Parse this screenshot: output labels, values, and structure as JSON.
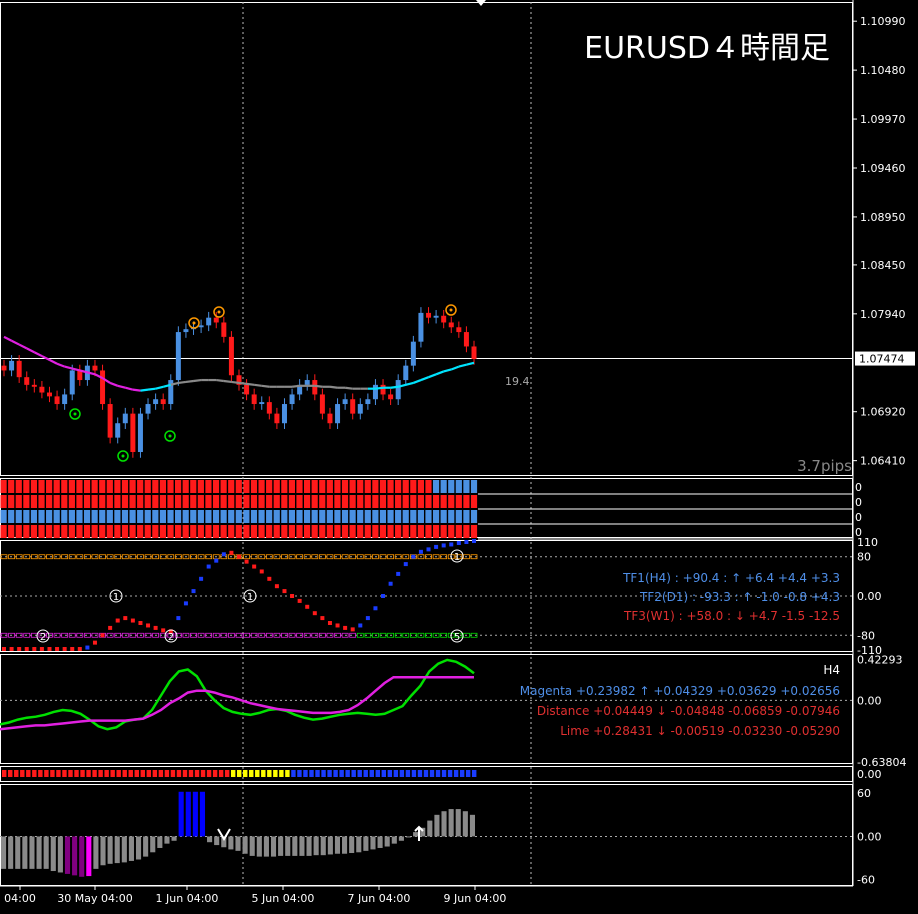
{
  "title": "EURUSD４時間足",
  "chart_data": [
    {
      "type": "candlestick",
      "title": "EURUSD４時間足",
      "price_axis_ticks": [
        "1.10990",
        "1.10480",
        "1.09970",
        "1.09460",
        "1.08950",
        "1.08450",
        "1.07940",
        "1.06920",
        "1.06410"
      ],
      "current_price": "1.07474",
      "ylim": [
        1.0625,
        1.1119
      ],
      "time_axis_ticks": [
        "04:00",
        "30 May 04:00",
        "1 Jun 04:00",
        "5 Jun 04:00",
        "7 Jun 04:00",
        "9 Jun 04:00"
      ],
      "annotations": {
        "range_value": "19.4",
        "spread_label": "3.7pips"
      },
      "candles_close": [
        1.0735,
        1.0745,
        1.0728,
        1.072,
        1.0718,
        1.0712,
        1.0708,
        1.07,
        1.071,
        1.0735,
        1.0725,
        1.074,
        1.0735,
        1.07,
        1.0665,
        1.068,
        1.069,
        1.065,
        1.069,
        1.07,
        1.0705,
        1.07,
        1.0725,
        1.0775,
        1.0778,
        1.078,
        1.0782,
        1.079,
        1.0785,
        1.077,
        1.073,
        1.072,
        1.071,
        1.07,
        1.0702,
        1.069,
        1.068,
        1.07,
        1.071,
        1.072,
        1.0725,
        1.071,
        1.069,
        1.068,
        1.07,
        1.0705,
        1.069,
        1.07,
        1.0705,
        1.072,
        1.071,
        1.0705,
        1.0725,
        1.074,
        1.0765,
        1.0795,
        1.079,
        1.0792,
        1.0785,
        1.078,
        1.0775,
        1.076,
        1.0747
      ],
      "candles_open": [
        1.074,
        1.0735,
        1.0745,
        1.0728,
        1.072,
        1.0718,
        1.0712,
        1.0708,
        1.07,
        1.071,
        1.0735,
        1.0725,
        1.074,
        1.0735,
        1.07,
        1.0665,
        1.068,
        1.069,
        1.065,
        1.069,
        1.07,
        1.0705,
        1.07,
        1.0725,
        1.0775,
        1.0778,
        1.078,
        1.0782,
        1.079,
        1.0785,
        1.077,
        1.073,
        1.072,
        1.071,
        1.07,
        1.0702,
        1.069,
        1.068,
        1.07,
        1.071,
        1.072,
        1.0725,
        1.071,
        1.069,
        1.068,
        1.07,
        1.0705,
        1.069,
        1.07,
        1.0705,
        1.072,
        1.071,
        1.0705,
        1.0725,
        1.074,
        1.0765,
        1.0795,
        1.079,
        1.0792,
        1.0785,
        1.078,
        1.0775,
        1.076
      ],
      "moving_average": [
        1.077,
        1.0766,
        1.0762,
        1.0758,
        1.0754,
        1.075,
        1.0746,
        1.0742,
        1.0739,
        1.0737,
        1.0735,
        1.0733,
        1.0731,
        1.0727,
        1.0722,
        1.0719,
        1.0717,
        1.0715,
        1.0714,
        1.0715,
        1.0716,
        1.0718,
        1.072,
        1.0722,
        1.0723,
        1.0724,
        1.0725,
        1.0725,
        1.0725,
        1.0724,
        1.0723,
        1.0722,
        1.0721,
        1.072,
        1.0719,
        1.0718,
        1.0718,
        1.0718,
        1.0718,
        1.0719,
        1.0719,
        1.0719,
        1.0718,
        1.0718,
        1.0717,
        1.0717,
        1.0716,
        1.0716,
        1.0716,
        1.0716,
        1.0717,
        1.0717,
        1.0718,
        1.072,
        1.0722,
        1.0725,
        1.0728,
        1.0731,
        1.0734,
        1.0736,
        1.0739,
        1.0741,
        1.0743
      ]
    },
    {
      "type": "heatmap",
      "rows": [
        {
          "red_count": 57,
          "blue_count": 6,
          "value_label": "0"
        },
        {
          "red_count": 63,
          "blue_count": 0,
          "value_label": "0"
        },
        {
          "red_count": 0,
          "blue_count": 63,
          "value_label": "0"
        },
        {
          "red_count": 63,
          "blue_count": 0,
          "value_label": "0"
        }
      ]
    },
    {
      "type": "scatter",
      "y_ticks": [
        "110",
        "80",
        "0.00",
        "-80",
        "-110"
      ],
      "ylim": [
        -110,
        110
      ],
      "info_lines": [
        {
          "text": "TF1(H4) : +90.4 : ↑ +6.4 +4.4 +3.3",
          "color": "#4f8fe8"
        },
        {
          "text": "TF2(D1) : -93.3 : ↑ -1.0 -0.8 +4.3",
          "color": "#4f8fe8"
        },
        {
          "text": "TF3(W1) : +58.0 : ↓ +4.7 -1.5 -12.5",
          "color": "#e03030"
        }
      ],
      "markers": [
        "1",
        "2",
        "2",
        "5",
        "1",
        "1"
      ],
      "values": [
        -108,
        -108,
        -108,
        -108,
        -108,
        -108,
        -108,
        -108,
        -108,
        -108,
        -108,
        -105,
        -95,
        -80,
        -65,
        -50,
        -45,
        -50,
        -55,
        -60,
        -65,
        -70,
        -72,
        -45,
        -15,
        10,
        35,
        60,
        72,
        85,
        88,
        80,
        70,
        60,
        50,
        35,
        20,
        10,
        0,
        -10,
        -22,
        -35,
        -45,
        -55,
        -60,
        -65,
        -68,
        -60,
        -45,
        -25,
        0,
        25,
        45,
        65,
        80,
        90,
        95,
        100,
        103,
        105,
        108,
        110,
        112
      ],
      "value_colors": [
        "red",
        "red",
        "red",
        "red",
        "red",
        "red",
        "red",
        "red",
        "red",
        "red",
        "red",
        "blue",
        "red",
        "red",
        "red",
        "red",
        "red",
        "red",
        "red",
        "red",
        "red",
        "red",
        "red",
        "blue",
        "blue",
        "blue",
        "blue",
        "blue",
        "blue",
        "blue",
        "red",
        "red",
        "red",
        "red",
        "red",
        "red",
        "red",
        "red",
        "red",
        "red",
        "red",
        "red",
        "red",
        "red",
        "red",
        "red",
        "red",
        "blue",
        "blue",
        "blue",
        "blue",
        "blue",
        "blue",
        "blue",
        "blue",
        "blue",
        "blue",
        "blue",
        "blue",
        "blue",
        "blue",
        "blue",
        "blue"
      ]
    },
    {
      "type": "line",
      "y_ticks": [
        "0.42293",
        "0.00",
        "-0.63804"
      ],
      "timeframe_label": "H4",
      "ylim": [
        -0.64,
        0.46
      ],
      "legend_lines": [
        {
          "text": "Magenta +0.23982 ↑ +0.04329 +0.03629 +0.02656",
          "color": "#4f8fe8"
        },
        {
          "text": "Distance +0.04449 ↓ -0.04848 -0.06859 -0.07946",
          "color": "#e03030"
        },
        {
          "text": "Lime +0.28431 ↓ -0.00519 -0.03230 -0.05290",
          "color": "#e03030"
        }
      ],
      "series": [
        {
          "name": "Lime",
          "color": "#00e000",
          "values": [
            -0.25,
            -0.23,
            -0.2,
            -0.18,
            -0.17,
            -0.15,
            -0.12,
            -0.1,
            -0.11,
            -0.14,
            -0.2,
            -0.27,
            -0.3,
            -0.28,
            -0.22,
            -0.2,
            -0.19,
            -0.1,
            0.05,
            0.2,
            0.3,
            0.32,
            0.25,
            0.1,
            0.0,
            -0.08,
            -0.12,
            -0.14,
            -0.15,
            -0.13,
            -0.1,
            -0.09,
            -0.11,
            -0.15,
            -0.18,
            -0.2,
            -0.19,
            -0.17,
            -0.15,
            -0.14,
            -0.13,
            -0.14,
            -0.15,
            -0.14,
            -0.1,
            -0.06,
            0.05,
            0.15,
            0.3,
            0.38,
            0.42,
            0.4,
            0.35,
            0.28
          ]
        },
        {
          "name": "Magenta",
          "color": "#e020e0",
          "values": [
            -0.3,
            -0.29,
            -0.28,
            -0.27,
            -0.26,
            -0.26,
            -0.25,
            -0.24,
            -0.23,
            -0.22,
            -0.21,
            -0.21,
            -0.21,
            -0.21,
            -0.21,
            -0.2,
            -0.19,
            -0.15,
            -0.1,
            -0.03,
            0.02,
            0.08,
            0.1,
            0.1,
            0.08,
            0.05,
            0.03,
            0.0,
            -0.03,
            -0.05,
            -0.07,
            -0.09,
            -0.1,
            -0.11,
            -0.12,
            -0.13,
            -0.13,
            -0.13,
            -0.12,
            -0.1,
            -0.05,
            0.02,
            0.1,
            0.18,
            0.24,
            0.24,
            0.24,
            0.24,
            0.24,
            0.24,
            0.24,
            0.24,
            0.24,
            0.24
          ]
        }
      ]
    },
    {
      "type": "heatmap",
      "value_label": "0.00",
      "cells": [
        "red",
        "red",
        "red",
        "red",
        "red",
        "red",
        "red",
        "red",
        "red",
        "red",
        "red",
        "red",
        "red",
        "red",
        "red",
        "red",
        "red",
        "red",
        "red",
        "red",
        "red",
        "red",
        "red",
        "red",
        "red",
        "red",
        "red",
        "red",
        "red",
        "red",
        "red",
        "red",
        "red",
        "red",
        "red",
        "red",
        "red",
        "red",
        "yellow",
        "yellow",
        "yellow",
        "yellow",
        "yellow",
        "yellow",
        "yellow",
        "yellow",
        "yellow",
        "yellow",
        "blue",
        "blue",
        "blue",
        "blue",
        "blue",
        "blue",
        "blue",
        "blue",
        "blue",
        "blue",
        "blue",
        "blue",
        "blue",
        "blue",
        "blue",
        "blue",
        "blue",
        "blue",
        "blue",
        "blue",
        "blue",
        "blue",
        "blue",
        "blue",
        "blue",
        "blue",
        "blue",
        "blue",
        "blue",
        "blue",
        "blue"
      ]
    },
    {
      "type": "bar",
      "y_ticks": [
        "60",
        "0.00",
        "-60"
      ],
      "ylim": [
        -66,
        70
      ],
      "values": [
        -45,
        -45,
        -45,
        -45,
        -45,
        -45,
        -45,
        -48,
        -50,
        -52,
        -54,
        -56,
        -55,
        -45,
        -40,
        -38,
        -37,
        -36,
        -34,
        -32,
        -28,
        -22,
        -16,
        -10,
        -6,
        62,
        62,
        62,
        62,
        -8,
        -12,
        -15,
        -18,
        -20,
        -24,
        -27,
        -28,
        -28,
        -28,
        -27,
        -27,
        -27,
        -27,
        -27,
        -26,
        -26,
        -25,
        -24,
        -24,
        -23,
        -22,
        -20,
        -18,
        -16,
        -14,
        -10,
        -6,
        0,
        6,
        12,
        22,
        30,
        35,
        38,
        38,
        35,
        30
      ],
      "colors": [
        "#8a8a8a",
        "#8a8a8a",
        "#8a8a8a",
        "#8a8a8a",
        "#8a8a8a",
        "#8a8a8a",
        "#8a8a8a",
        "#8a8a8a",
        "#8a8a8a",
        "#800080",
        "#800080",
        "#800080",
        "#ff00ff",
        "#8a8a8a",
        "#8a8a8a",
        "#8a8a8a",
        "#8a8a8a",
        "#8a8a8a",
        "#8a8a8a",
        "#8a8a8a",
        "#8a8a8a",
        "#8a8a8a",
        "#8a8a8a",
        "#8a8a8a",
        "#8a8a8a",
        "#0000ff",
        "#0000ff",
        "#0000ff",
        "#0000ff",
        "#8a8a8a",
        "#8a8a8a",
        "#8a8a8a",
        "#8a8a8a",
        "#8a8a8a",
        "#8a8a8a",
        "#8a8a8a",
        "#8a8a8a",
        "#8a8a8a",
        "#8a8a8a",
        "#8a8a8a",
        "#8a8a8a",
        "#8a8a8a",
        "#8a8a8a",
        "#8a8a8a",
        "#8a8a8a",
        "#8a8a8a",
        "#8a8a8a",
        "#8a8a8a",
        "#8a8a8a",
        "#8a8a8a",
        "#8a8a8a",
        "#8a8a8a",
        "#8a8a8a",
        "#8a8a8a",
        "#8a8a8a",
        "#8a8a8a",
        "#8a8a8a",
        "#8a8a8a",
        "#8a8a8a",
        "#8a8a8a",
        "#8a8a8a",
        "#8a8a8a",
        "#8a8a8a",
        "#8a8a8a",
        "#8a8a8a",
        "#8a8a8a",
        "#8a8a8a"
      ]
    }
  ]
}
